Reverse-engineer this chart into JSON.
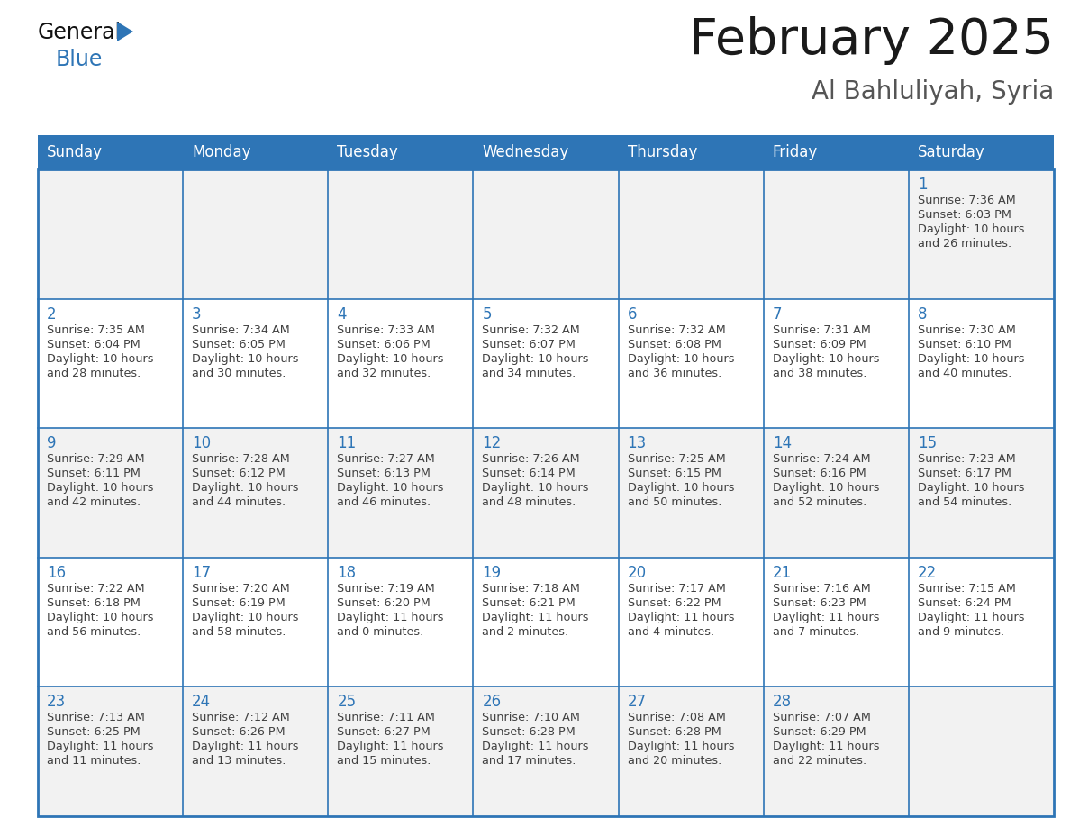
{
  "title": "February 2025",
  "subtitle": "Al Bahluliyah, Syria",
  "header_bg_color": "#2E75B6",
  "header_text_color": "#FFFFFF",
  "cell_bg_even": "#F2F2F2",
  "cell_bg_odd": "#FFFFFF",
  "grid_line_color": "#2E75B6",
  "day_number_color": "#2E75B6",
  "cell_text_color": "#404040",
  "title_color": "#1a1a1a",
  "subtitle_color": "#555555",
  "days_of_week": [
    "Sunday",
    "Monday",
    "Tuesday",
    "Wednesday",
    "Thursday",
    "Friday",
    "Saturday"
  ],
  "calendar_data": [
    [
      null,
      null,
      null,
      null,
      null,
      null,
      {
        "day": 1,
        "sunrise": "7:36 AM",
        "sunset": "6:03 PM",
        "daylight_l1": "10 hours",
        "daylight_l2": "and 26 minutes."
      }
    ],
    [
      {
        "day": 2,
        "sunrise": "7:35 AM",
        "sunset": "6:04 PM",
        "daylight_l1": "10 hours",
        "daylight_l2": "and 28 minutes."
      },
      {
        "day": 3,
        "sunrise": "7:34 AM",
        "sunset": "6:05 PM",
        "daylight_l1": "10 hours",
        "daylight_l2": "and 30 minutes."
      },
      {
        "day": 4,
        "sunrise": "7:33 AM",
        "sunset": "6:06 PM",
        "daylight_l1": "10 hours",
        "daylight_l2": "and 32 minutes."
      },
      {
        "day": 5,
        "sunrise": "7:32 AM",
        "sunset": "6:07 PM",
        "daylight_l1": "10 hours",
        "daylight_l2": "and 34 minutes."
      },
      {
        "day": 6,
        "sunrise": "7:32 AM",
        "sunset": "6:08 PM",
        "daylight_l1": "10 hours",
        "daylight_l2": "and 36 minutes."
      },
      {
        "day": 7,
        "sunrise": "7:31 AM",
        "sunset": "6:09 PM",
        "daylight_l1": "10 hours",
        "daylight_l2": "and 38 minutes."
      },
      {
        "day": 8,
        "sunrise": "7:30 AM",
        "sunset": "6:10 PM",
        "daylight_l1": "10 hours",
        "daylight_l2": "and 40 minutes."
      }
    ],
    [
      {
        "day": 9,
        "sunrise": "7:29 AM",
        "sunset": "6:11 PM",
        "daylight_l1": "10 hours",
        "daylight_l2": "and 42 minutes."
      },
      {
        "day": 10,
        "sunrise": "7:28 AM",
        "sunset": "6:12 PM",
        "daylight_l1": "10 hours",
        "daylight_l2": "and 44 minutes."
      },
      {
        "day": 11,
        "sunrise": "7:27 AM",
        "sunset": "6:13 PM",
        "daylight_l1": "10 hours",
        "daylight_l2": "and 46 minutes."
      },
      {
        "day": 12,
        "sunrise": "7:26 AM",
        "sunset": "6:14 PM",
        "daylight_l1": "10 hours",
        "daylight_l2": "and 48 minutes."
      },
      {
        "day": 13,
        "sunrise": "7:25 AM",
        "sunset": "6:15 PM",
        "daylight_l1": "10 hours",
        "daylight_l2": "and 50 minutes."
      },
      {
        "day": 14,
        "sunrise": "7:24 AM",
        "sunset": "6:16 PM",
        "daylight_l1": "10 hours",
        "daylight_l2": "and 52 minutes."
      },
      {
        "day": 15,
        "sunrise": "7:23 AM",
        "sunset": "6:17 PM",
        "daylight_l1": "10 hours",
        "daylight_l2": "and 54 minutes."
      }
    ],
    [
      {
        "day": 16,
        "sunrise": "7:22 AM",
        "sunset": "6:18 PM",
        "daylight_l1": "10 hours",
        "daylight_l2": "and 56 minutes."
      },
      {
        "day": 17,
        "sunrise": "7:20 AM",
        "sunset": "6:19 PM",
        "daylight_l1": "10 hours",
        "daylight_l2": "and 58 minutes."
      },
      {
        "day": 18,
        "sunrise": "7:19 AM",
        "sunset": "6:20 PM",
        "daylight_l1": "11 hours",
        "daylight_l2": "and 0 minutes."
      },
      {
        "day": 19,
        "sunrise": "7:18 AM",
        "sunset": "6:21 PM",
        "daylight_l1": "11 hours",
        "daylight_l2": "and 2 minutes."
      },
      {
        "day": 20,
        "sunrise": "7:17 AM",
        "sunset": "6:22 PM",
        "daylight_l1": "11 hours",
        "daylight_l2": "and 4 minutes."
      },
      {
        "day": 21,
        "sunrise": "7:16 AM",
        "sunset": "6:23 PM",
        "daylight_l1": "11 hours",
        "daylight_l2": "and 7 minutes."
      },
      {
        "day": 22,
        "sunrise": "7:15 AM",
        "sunset": "6:24 PM",
        "daylight_l1": "11 hours",
        "daylight_l2": "and 9 minutes."
      }
    ],
    [
      {
        "day": 23,
        "sunrise": "7:13 AM",
        "sunset": "6:25 PM",
        "daylight_l1": "11 hours",
        "daylight_l2": "and 11 minutes."
      },
      {
        "day": 24,
        "sunrise": "7:12 AM",
        "sunset": "6:26 PM",
        "daylight_l1": "11 hours",
        "daylight_l2": "and 13 minutes."
      },
      {
        "day": 25,
        "sunrise": "7:11 AM",
        "sunset": "6:27 PM",
        "daylight_l1": "11 hours",
        "daylight_l2": "and 15 minutes."
      },
      {
        "day": 26,
        "sunrise": "7:10 AM",
        "sunset": "6:28 PM",
        "daylight_l1": "11 hours",
        "daylight_l2": "and 17 minutes."
      },
      {
        "day": 27,
        "sunrise": "7:08 AM",
        "sunset": "6:28 PM",
        "daylight_l1": "11 hours",
        "daylight_l2": "and 20 minutes."
      },
      {
        "day": 28,
        "sunrise": "7:07 AM",
        "sunset": "6:29 PM",
        "daylight_l1": "11 hours",
        "daylight_l2": "and 22 minutes."
      },
      null
    ]
  ]
}
